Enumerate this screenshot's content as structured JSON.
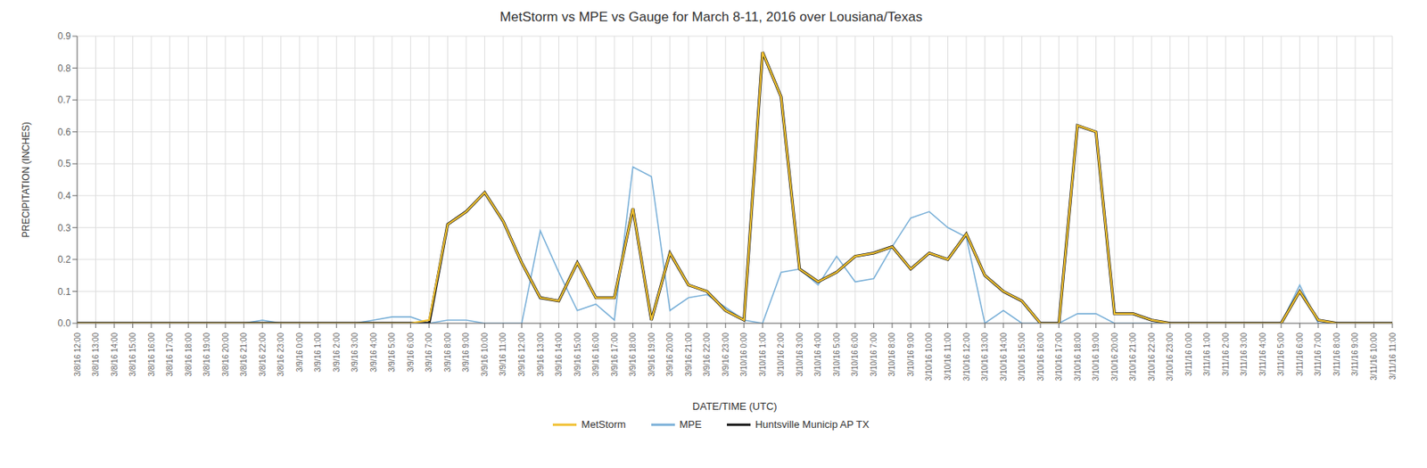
{
  "chart_data": {
    "type": "line",
    "title": "MetStorm  vs MPE vs Gauge  for March 8-11, 2016 over Lousiana/Texas",
    "xlabel": "DATE/TIME (UTC)",
    "ylabel": "PRECIPITATION (INCHES)",
    "ylim": [
      0,
      0.9
    ],
    "yticks": [
      {
        "value": 0,
        "label": "0.0"
      },
      0.1,
      0.2,
      0.3,
      0.4,
      0.5,
      0.6,
      0.7,
      0.8,
      0.9
    ],
    "grid": true,
    "legend": "bottom",
    "categories": [
      "3/8/16 12:00",
      "3/8/16 13:00",
      "3/8/16 14:00",
      "3/8/16 15:00",
      "3/8/16 16:00",
      "3/8/16 17:00",
      "3/8/16 18:00",
      "3/8/16 19:00",
      "3/8/16 20:00",
      "3/8/16 21:00",
      "3/8/16 22:00",
      "3/8/16 23:00",
      "3/9/16 0:00",
      "3/9/16 1:00",
      "3/9/16 2:00",
      "3/9/16 3:00",
      "3/9/16 4:00",
      "3/9/16 5:00",
      "3/9/16 6:00",
      "3/9/16 7:00",
      "3/9/16 8:00",
      "3/9/16 9:00",
      "3/9/16 10:00",
      "3/9/16 11:00",
      "3/9/16 12:00",
      "3/9/16 13:00",
      "3/9/16 14:00",
      "3/9/16 15:00",
      "3/9/16 16:00",
      "3/9/16 17:00",
      "3/9/16 18:00",
      "3/9/16 19:00",
      "3/9/16 20:00",
      "3/9/16 21:00",
      "3/9/16 22:00",
      "3/9/16 23:00",
      "3/10/16 0:00",
      "3/10/16 1:00",
      "3/10/16 2:00",
      "3/10/16 3:00",
      "3/10/16 4:00",
      "3/10/16 5:00",
      "3/10/16 6:00",
      "3/10/16 7:00",
      "3/10/16 8:00",
      "3/10/16 9:00",
      "3/10/16 10:00",
      "3/10/16 11:00",
      "3/10/16 12:00",
      "3/10/16 13:00",
      "3/10/16 14:00",
      "3/10/16 15:00",
      "3/10/16 16:00",
      "3/10/16 17:00",
      "3/10/16 18:00",
      "3/10/16 19:00",
      "3/10/16 20:00",
      "3/10/16 21:00",
      "3/10/16 22:00",
      "3/10/16 23:00",
      "3/11/16 0:00",
      "3/11/16 1:00",
      "3/11/16 2:00",
      "3/11/16 3:00",
      "3/11/16 4:00",
      "3/11/16 5:00",
      "3/11/16 6:00",
      "3/11/16 7:00",
      "3/11/16 8:00",
      "3/11/16 9:00",
      "3/11/16 10:00",
      "3/11/16 11:00"
    ],
    "series": [
      {
        "name": "MetStorm",
        "color": "#f0c030",
        "values": [
          0.0,
          0.0,
          0.0,
          0.0,
          0.0,
          0.0,
          0.0,
          0.0,
          0.0,
          0.0,
          0.0,
          0.0,
          0.0,
          0.0,
          0.0,
          0.0,
          0.0,
          0.0,
          0.0,
          0.01,
          0.31,
          0.35,
          0.41,
          0.32,
          0.19,
          0.08,
          0.07,
          0.19,
          0.08,
          0.08,
          0.36,
          0.01,
          0.22,
          0.12,
          0.1,
          0.04,
          0.01,
          0.85,
          0.71,
          0.17,
          0.13,
          0.16,
          0.21,
          0.22,
          0.24,
          0.17,
          0.22,
          0.2,
          0.28,
          0.15,
          0.1,
          0.07,
          0.0,
          0.0,
          0.62,
          0.6,
          0.03,
          0.03,
          0.01,
          0.0,
          0.0,
          0.0,
          0.0,
          0.0,
          0.0,
          0.0,
          0.1,
          0.01,
          0.0,
          0.0,
          0.0,
          0.0
        ]
      },
      {
        "name": "MPE",
        "color": "#7ab0d8",
        "values": [
          0.0,
          0.0,
          0.0,
          0.0,
          0.0,
          0.0,
          0.0,
          0.0,
          0.0,
          0.0,
          0.01,
          0.0,
          0.0,
          0.0,
          0.0,
          0.0,
          0.01,
          0.02,
          0.02,
          0.0,
          0.01,
          0.01,
          0.0,
          0.0,
          0.0,
          0.29,
          0.16,
          0.04,
          0.06,
          0.01,
          0.49,
          0.46,
          0.04,
          0.08,
          0.09,
          0.05,
          0.01,
          0.0,
          0.16,
          0.17,
          0.12,
          0.21,
          0.13,
          0.14,
          0.24,
          0.33,
          0.35,
          0.3,
          0.27,
          0.0,
          0.04,
          0.0,
          0.0,
          0.0,
          0.03,
          0.03,
          0.0,
          0.0,
          0.0,
          0.0,
          0.0,
          0.0,
          0.0,
          0.0,
          0.0,
          0.0,
          0.12,
          0.0,
          0.0,
          0.0,
          0.0,
          0.0
        ]
      },
      {
        "name": "Huntsville Municip AP TX",
        "color": "#111111",
        "values": [
          0.0,
          0.0,
          0.0,
          0.0,
          0.0,
          0.0,
          0.0,
          0.0,
          0.0,
          0.0,
          0.0,
          0.0,
          0.0,
          0.0,
          0.0,
          0.0,
          0.0,
          0.0,
          0.0,
          0.0,
          0.31,
          0.35,
          0.41,
          0.32,
          0.19,
          0.08,
          0.07,
          0.19,
          0.08,
          0.08,
          0.36,
          0.01,
          0.22,
          0.12,
          0.1,
          0.04,
          0.01,
          0.85,
          0.71,
          0.17,
          0.13,
          0.16,
          0.21,
          0.22,
          0.24,
          0.17,
          0.22,
          0.2,
          0.28,
          0.15,
          0.1,
          0.07,
          0.0,
          0.0,
          0.62,
          0.6,
          0.03,
          0.03,
          0.01,
          0.0,
          0.0,
          0.0,
          0.0,
          0.0,
          0.0,
          0.0,
          0.1,
          0.01,
          0.0,
          0.0,
          0.0,
          0.0
        ]
      }
    ]
  }
}
